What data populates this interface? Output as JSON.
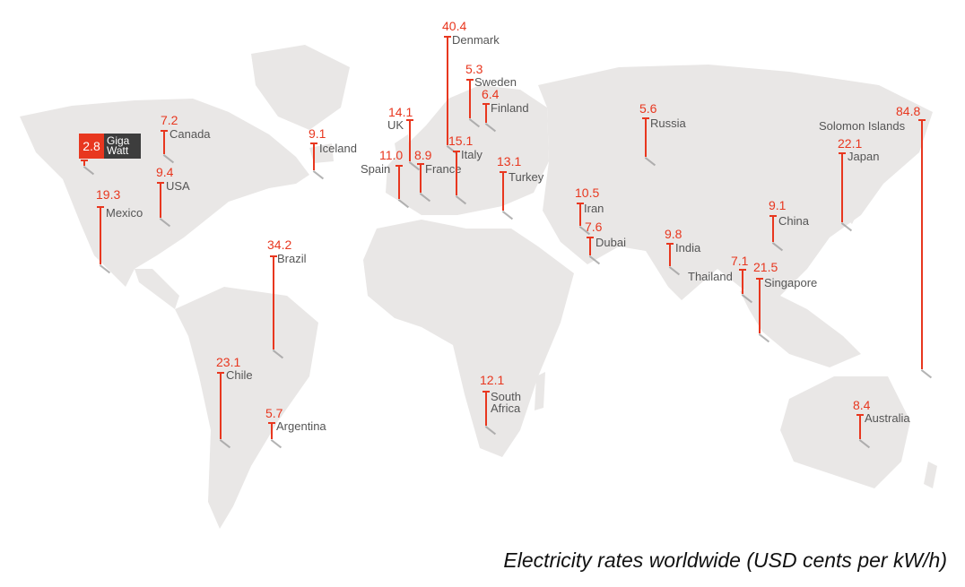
{
  "colors": {
    "land": "#e9e7e6",
    "marker": "#e8371f",
    "label": "#555555",
    "legend_dark": "#3d3d3d"
  },
  "caption": "Electricity rates worldwide (USD cents per kW/h)",
  "legend": {
    "value": "2.8",
    "unit_line1": "Giga",
    "unit_line2": "Watt"
  },
  "markers": [
    {
      "id": "giga-watt",
      "name": "",
      "value": "2.8"
    },
    {
      "id": "canada",
      "name": "Canada",
      "value": "7.2"
    },
    {
      "id": "usa",
      "name": "USA",
      "value": "9.4"
    },
    {
      "id": "mexico",
      "name": "Mexico",
      "value": "19.3"
    },
    {
      "id": "iceland",
      "name": "Iceland",
      "value": "9.1"
    },
    {
      "id": "uk",
      "name": "UK",
      "value": "14.1"
    },
    {
      "id": "spain",
      "name": "Spain",
      "value": "11.0"
    },
    {
      "id": "france",
      "name": "France",
      "value": "8.9"
    },
    {
      "id": "denmark",
      "name": "Denmark",
      "value": "40.4"
    },
    {
      "id": "sweden",
      "name": "Sweden",
      "value": "5.3"
    },
    {
      "id": "finland",
      "name": "Finland",
      "value": "6.4"
    },
    {
      "id": "italy",
      "name": "Italy",
      "value": "15.1"
    },
    {
      "id": "turkey",
      "name": "Turkey",
      "value": "13.1"
    },
    {
      "id": "russia",
      "name": "Russia",
      "value": "5.6"
    },
    {
      "id": "solomon-islands",
      "name": "Solomon Islands",
      "value": "84.8"
    },
    {
      "id": "japan",
      "name": "Japan",
      "value": "22.1"
    },
    {
      "id": "china",
      "name": "China",
      "value": "9.1"
    },
    {
      "id": "iran",
      "name": "Iran",
      "value": "10.5"
    },
    {
      "id": "dubai",
      "name": "Dubai",
      "value": "7.6"
    },
    {
      "id": "india",
      "name": "India",
      "value": "9.8"
    },
    {
      "id": "thailand",
      "name": "Thailand",
      "value": "7.1"
    },
    {
      "id": "singapore",
      "name": "Singapore",
      "value": "21.5"
    },
    {
      "id": "brazil",
      "name": "Brazil",
      "value": "34.2"
    },
    {
      "id": "chile",
      "name": "Chile",
      "value": "23.1"
    },
    {
      "id": "argentina",
      "name": "Argentina",
      "value": "5.7"
    },
    {
      "id": "south-africa",
      "name": "South Africa",
      "value": "12.1"
    },
    {
      "id": "australia",
      "name": "Australia",
      "value": "8.4"
    }
  ]
}
